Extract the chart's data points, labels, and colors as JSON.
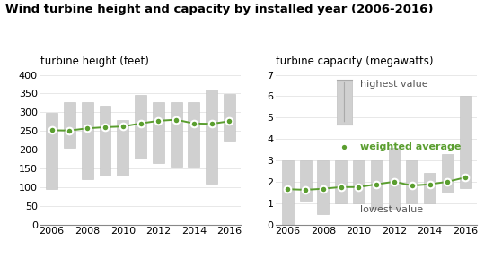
{
  "title": "Wind turbine height and capacity by installed year (2006-2016)",
  "subtitle_left": "turbine height (feet)",
  "subtitle_right": "turbine capacity (megawatts)",
  "years": [
    2006,
    2007,
    2008,
    2009,
    2010,
    2011,
    2012,
    2013,
    2014,
    2015,
    2016
  ],
  "height": {
    "ylim": [
      0,
      400
    ],
    "yticks": [
      0,
      50,
      100,
      150,
      200,
      250,
      300,
      350,
      400
    ],
    "bar_low": [
      95,
      205,
      120,
      130,
      130,
      175,
      165,
      155,
      155,
      110,
      225
    ],
    "bar_high": [
      298,
      327,
      327,
      318,
      280,
      345,
      327,
      327,
      327,
      360,
      348
    ],
    "avg": [
      252,
      251,
      257,
      260,
      262,
      270,
      277,
      280,
      270,
      269,
      276
    ]
  },
  "capacity": {
    "ylim": [
      0,
      7
    ],
    "yticks": [
      0,
      1,
      2,
      3,
      4,
      5,
      6,
      7
    ],
    "bar_low": [
      0.0,
      1.1,
      0.5,
      1.0,
      1.0,
      0.75,
      0.75,
      1.0,
      1.0,
      1.5,
      1.7
    ],
    "bar_high": [
      3.0,
      3.0,
      3.0,
      3.0,
      3.0,
      3.0,
      3.6,
      3.0,
      2.4,
      3.3,
      6.0
    ],
    "avg": [
      1.65,
      1.62,
      1.67,
      1.75,
      1.75,
      1.88,
      2.0,
      1.82,
      1.88,
      2.0,
      2.2
    ]
  },
  "bar_color": "#d0d0d0",
  "bar_edge_color": "#c0c0c0",
  "line_color": "#5a9e2f",
  "dot_color": "#5a9e2f",
  "dot_edge_color": "#ffffff",
  "background_color": "#ffffff",
  "grid_color": "#e8e8e8",
  "title_fontsize": 9.5,
  "subtitle_fontsize": 8.5,
  "tick_fontsize": 8,
  "legend_fontsize": 8,
  "bar_width": 0.65
}
